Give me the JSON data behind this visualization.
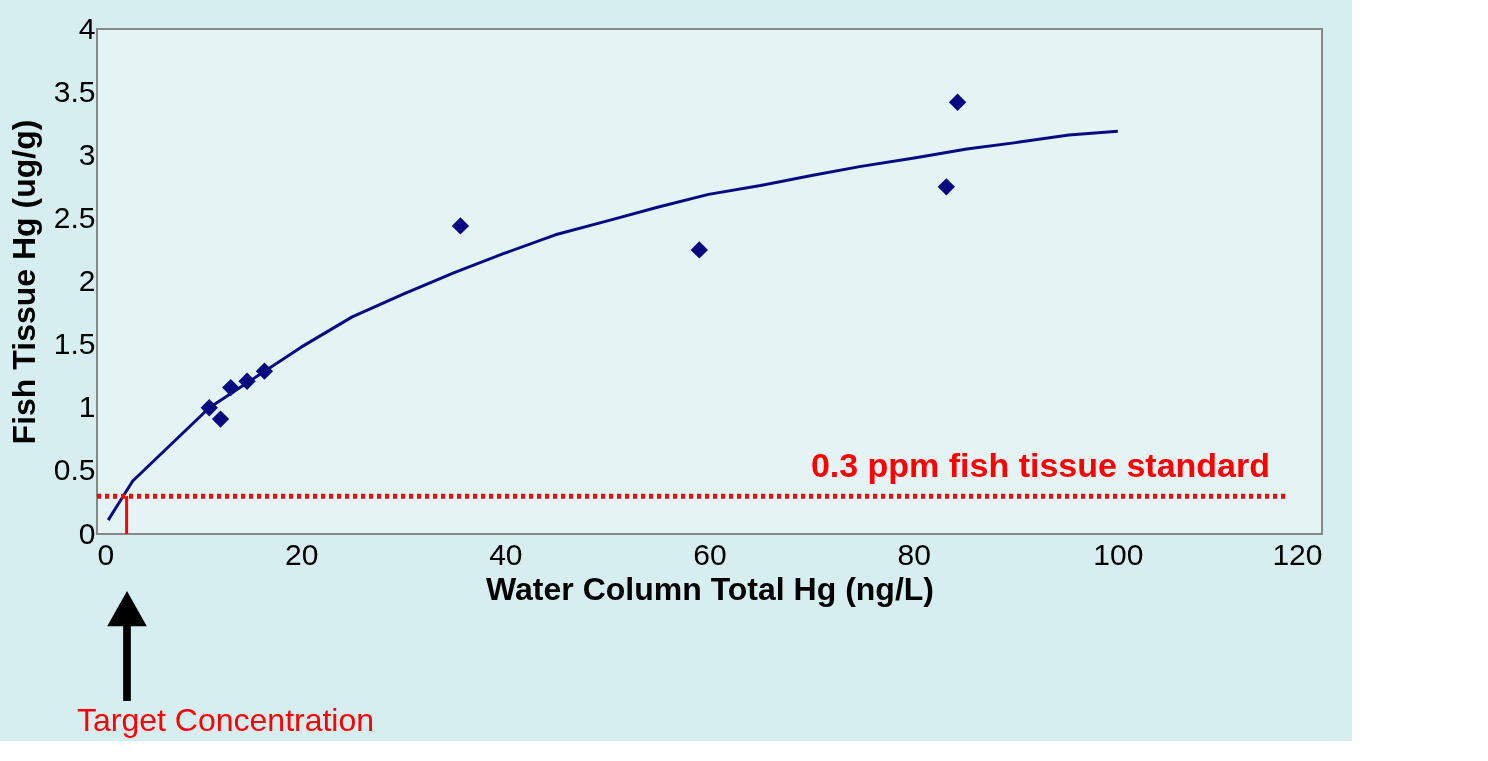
{
  "chart_data": {
    "type": "scatter",
    "xlabel": "Water Column Total Hg (ng/L)",
    "ylabel": "Fish Tissue Hg (ug/g)",
    "xlim": [
      0,
      120
    ],
    "xticks": [
      0,
      20,
      40,
      60,
      80,
      100,
      120
    ],
    "ylim": [
      0,
      4
    ],
    "yticks": [
      0,
      0.5,
      1,
      1.5,
      2,
      2.5,
      3,
      3.5,
      4
    ],
    "grid": false,
    "series": [
      {
        "type": "line",
        "color": "#0a0a80",
        "marker": "none",
        "line_style": "solid",
        "x": [
          1.1,
          2.1,
          3.5,
          11,
          20,
          25,
          30,
          35,
          39.8,
          44.9,
          50,
          55,
          59.9,
          65,
          70,
          74.7,
          80.2,
          85.2,
          90,
          95.2,
          100
        ],
        "values": [
          0.11,
          0.24,
          0.42,
          1.0,
          1.48,
          1.72,
          1.9,
          2.07,
          2.22,
          2.37,
          2.48,
          2.59,
          2.69,
          2.76,
          2.84,
          2.91,
          2.98,
          3.05,
          3.1,
          3.16,
          3.19
        ]
      },
      {
        "type": "line",
        "color": "#ff0000",
        "marker": "none",
        "line_style": "solid",
        "x": [
          2.9,
          2.9
        ],
        "values": [
          0,
          0.3
        ]
      },
      {
        "color": "#0a0a80",
        "marker": "diamond",
        "x": [
          11.0,
          12.1,
          13.1,
          14.7,
          16.4,
          35.6,
          59.0,
          83.2,
          84.3
        ],
        "values": [
          1.0,
          0.91,
          1.16,
          1.21,
          1.29,
          2.44,
          2.25,
          2.75,
          3.42
        ]
      }
    ],
    "ref_lines": [
      {
        "axis": "y",
        "value": 0.3,
        "label": "0.3 ppm fish tissue standard",
        "color": "#ff0000",
        "line_style": "dotted"
      }
    ],
    "annotations": [
      "Target Concentration"
    ]
  }
}
